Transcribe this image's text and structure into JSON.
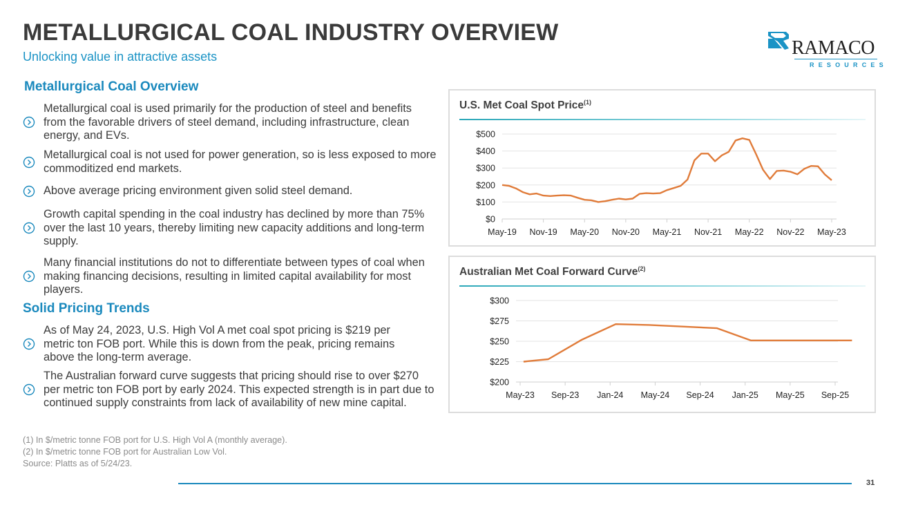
{
  "header": {
    "title": "METALLURGICAL COAL INDUSTRY OVERVIEW",
    "subtitle": "Unlocking value in attractive assets"
  },
  "logo": {
    "name": "RAMACO",
    "sub": "RESOURCES",
    "icon": "ramaco-r-logo-icon"
  },
  "colors": {
    "accent_blue": "#1a89bd",
    "line_orange": "#e07b39",
    "title_gray": "#3a3a3a"
  },
  "overview": {
    "heading": "Metallurgical Coal Overview",
    "bullet_icon": "chevron-circle-right-icon",
    "bullets": [
      "Metallurgical coal is used primarily for the production of steel and benefits from the favorable drivers of steel demand, including infrastructure, clean energy, and EVs.",
      "Metallurgical coal is not used for power generation, so is less exposed to more commoditized end markets.",
      "Above average pricing environment given solid steel demand.",
      "Growth capital spending in the coal industry has declined by more than 75% over the last 10 years, thereby limiting new capacity additions and long-term supply.",
      "Many financial institutions do not to differentiate between types of coal when making financing decisions, resulting in limited capital availability for most players."
    ]
  },
  "pricing": {
    "heading": "Solid Pricing Trends",
    "bullets": [
      "As of May 24, 2023, U.S. High Vol A met coal spot pricing is $219 per metric ton FOB port. While this is down from the peak, pricing remains above the long-term average.",
      "The Australian forward curve suggests that pricing should rise to over $270 per metric ton FOB port by early 2024. This expected strength is in part due to continued supply constraints from lack of availability of new mine capital."
    ]
  },
  "footnotes": [
    "(1) In $/metric tonne FOB port for U.S. High Vol A (monthly average).",
    "(2) In $/metric tonne FOB port for Australian Low Vol.",
    "Source: Platts as of 5/24/23."
  ],
  "page_number": "31",
  "chart_data": [
    {
      "type": "line",
      "title": "U.S. Met Coal Spot Price",
      "title_superscript": "(1)",
      "xlabel": "",
      "ylabel": "",
      "ylim": [
        0,
        500
      ],
      "yticks": [
        "$0",
        "$100",
        "$200",
        "$300",
        "$400",
        "$500"
      ],
      "ytick_values": [
        0,
        100,
        200,
        300,
        400,
        500
      ],
      "xtick_labels": [
        "May-19",
        "Nov-19",
        "May-20",
        "Nov-20",
        "May-21",
        "Nov-21",
        "May-22",
        "Nov-22",
        "May-23"
      ],
      "xtick_month_index": [
        0,
        6,
        12,
        18,
        24,
        30,
        36,
        42,
        48
      ],
      "grid": true,
      "legend": "none",
      "series": [
        {
          "name": "U.S. High Vol A spot price",
          "start": "May-19",
          "frequency": "monthly",
          "values": [
            200,
            195,
            180,
            158,
            145,
            150,
            138,
            135,
            138,
            140,
            138,
            125,
            113,
            110,
            100,
            105,
            113,
            120,
            115,
            120,
            148,
            152,
            150,
            152,
            170,
            182,
            195,
            232,
            345,
            385,
            385,
            340,
            375,
            395,
            462,
            475,
            465,
            380,
            290,
            235,
            283,
            285,
            278,
            263,
            295,
            312,
            310,
            262,
            228
          ]
        }
      ]
    },
    {
      "type": "line",
      "title": "Australian Met Coal Forward Curve",
      "title_superscript": "(2)",
      "xlabel": "",
      "ylabel": "",
      "ylim": [
        200,
        300
      ],
      "yticks": [
        "$200",
        "$225",
        "$250",
        "$275",
        "$300"
      ],
      "ytick_values": [
        200,
        225,
        250,
        275,
        300
      ],
      "xtick_labels": [
        "May-23",
        "Sep-23",
        "Jan-24",
        "May-24",
        "Sep-24",
        "Jan-25",
        "May-25",
        "Sep-25"
      ],
      "xtick_month_index": [
        0,
        4,
        8,
        12,
        16,
        20,
        24,
        28
      ],
      "grid": true,
      "legend": "none",
      "series": [
        {
          "name": "Australian Low Vol forward curve",
          "points": [
            {
              "month_index": 0.3,
              "value": 225
            },
            {
              "month_index": 2.5,
              "value": 228
            },
            {
              "month_index": 5.5,
              "value": 252
            },
            {
              "month_index": 8.5,
              "value": 271
            },
            {
              "month_index": 11.5,
              "value": 270
            },
            {
              "month_index": 17.5,
              "value": 266
            },
            {
              "month_index": 20.5,
              "value": 251
            },
            {
              "month_index": 23.5,
              "value": 251
            },
            {
              "month_index": 26.5,
              "value": 251
            },
            {
              "month_index": 29.5,
              "value": 251
            }
          ]
        }
      ]
    }
  ]
}
